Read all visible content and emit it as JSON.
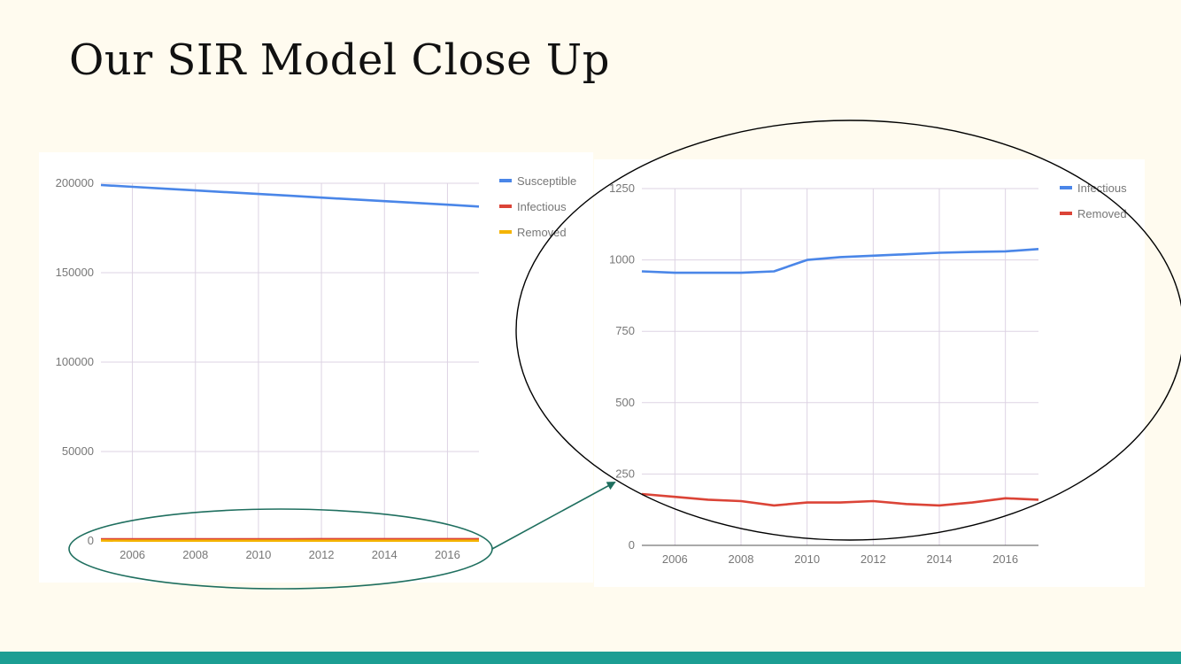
{
  "slide": {
    "title": "Our SIR Model Close Up",
    "accent_color": "#1c9e93",
    "background_color": "#fffbef"
  },
  "chart_data": [
    {
      "type": "line",
      "title": "",
      "xlabel": "",
      "ylabel": "",
      "x": [
        2005,
        2006,
        2007,
        2008,
        2009,
        2010,
        2011,
        2012,
        2013,
        2014,
        2015,
        2016,
        2017
      ],
      "xlim": [
        2005,
        2017
      ],
      "ylim": [
        0,
        200000
      ],
      "x_ticks": [
        2006,
        2008,
        2010,
        2012,
        2014,
        2016
      ],
      "y_ticks": [
        0,
        50000,
        100000,
        150000,
        200000
      ],
      "grid": true,
      "legend_position": "right",
      "series": [
        {
          "name": "Susceptible",
          "color": "#4a86e8",
          "values": [
            199000,
            198000,
            197000,
            196000,
            195000,
            194000,
            193000,
            192000,
            191000,
            190000,
            189000,
            188000,
            187000
          ]
        },
        {
          "name": "Infectious",
          "color": "#db4437",
          "values": [
            960,
            955,
            955,
            955,
            960,
            1000,
            1010,
            1015,
            1020,
            1025,
            1028,
            1030,
            1038
          ]
        },
        {
          "name": "Removed",
          "color": "#f4b400",
          "values": [
            180,
            170,
            160,
            155,
            140,
            150,
            150,
            155,
            145,
            140,
            150,
            165,
            160
          ]
        }
      ]
    },
    {
      "type": "line",
      "title": "",
      "xlabel": "",
      "ylabel": "",
      "x": [
        2005,
        2006,
        2007,
        2008,
        2009,
        2010,
        2011,
        2012,
        2013,
        2014,
        2015,
        2016,
        2017
      ],
      "xlim": [
        2005,
        2017
      ],
      "ylim": [
        0,
        1250
      ],
      "x_ticks": [
        2006,
        2008,
        2010,
        2012,
        2014,
        2016
      ],
      "y_ticks": [
        0,
        250,
        500,
        750,
        1000,
        1250
      ],
      "grid": true,
      "legend_position": "top-right",
      "series": [
        {
          "name": "Infectious",
          "color": "#4a86e8",
          "values": [
            960,
            955,
            955,
            955,
            960,
            1000,
            1010,
            1015,
            1020,
            1025,
            1028,
            1030,
            1038
          ]
        },
        {
          "name": "Removed",
          "color": "#db4437",
          "values": [
            180,
            170,
            160,
            155,
            140,
            150,
            150,
            155,
            145,
            140,
            150,
            165,
            160
          ]
        }
      ]
    }
  ]
}
